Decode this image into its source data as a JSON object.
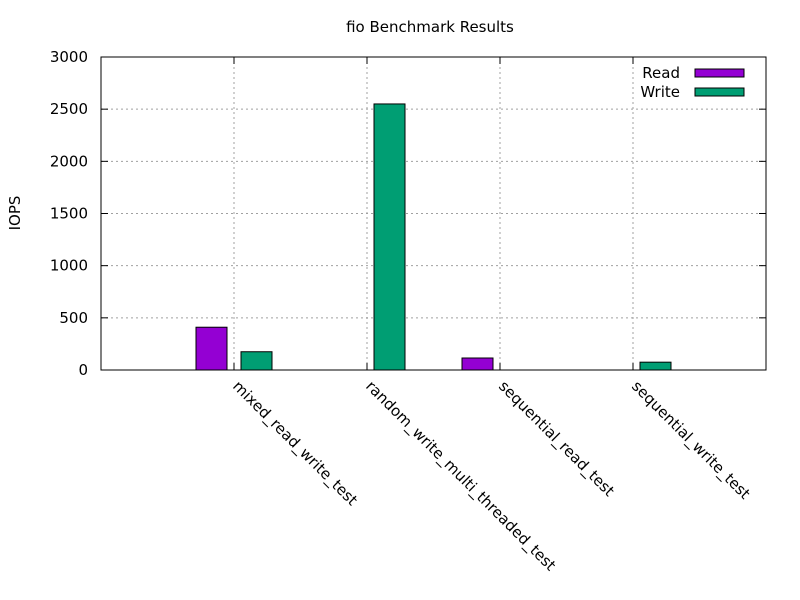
{
  "chart_data": {
    "type": "bar",
    "title": "fio Benchmark Results",
    "ylabel": "IOPS",
    "xlabel": "",
    "ylim": [
      0,
      3000
    ],
    "yticks": [
      0,
      500,
      1000,
      1500,
      2000,
      2500,
      3000
    ],
    "grid": true,
    "legend_position": "top-right",
    "categories": [
      "mixed_read_write_test",
      "random_write_multi_threaded_test",
      "sequential_read_test",
      "sequential_write_test"
    ],
    "series": [
      {
        "name": "Read",
        "color": "#9400d3",
        "values": [
          410,
          0,
          115,
          0
        ]
      },
      {
        "name": "Write",
        "color": "#009e73",
        "values": [
          175,
          2550,
          0,
          75
        ]
      }
    ]
  }
}
